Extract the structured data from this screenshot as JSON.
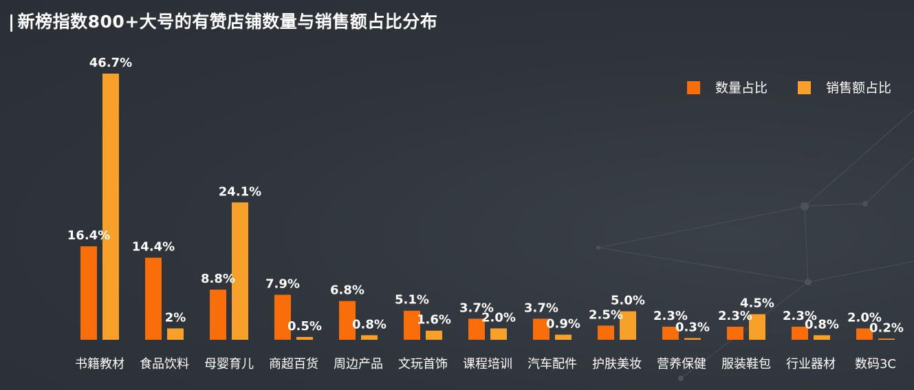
{
  "title": "新榜指数800+大号的有赞店铺数量与销售额占比分布",
  "colors": {
    "series1": "#f96d0a",
    "series2": "#f8a12a",
    "text": "#ffffff",
    "background": "#30353c"
  },
  "chart_data": {
    "type": "bar",
    "title": "新榜指数800+大号的有赞店铺数量与销售额占比分布",
    "xlabel": "",
    "ylabel": "",
    "ylim": [
      0,
      50
    ],
    "grid": false,
    "legend_position": "top-right",
    "categories": [
      "书籍教材",
      "食品饮料",
      "母婴育儿",
      "商超百货",
      "周边产品",
      "文玩首饰",
      "课程培训",
      "汽车配件",
      "护肤美妆",
      "营养保健",
      "服装鞋包",
      "行业器材",
      "数码3C"
    ],
    "series": [
      {
        "name": "数量占比",
        "values": [
          16.4,
          14.4,
          8.8,
          7.9,
          6.8,
          5.1,
          3.7,
          3.7,
          2.5,
          2.3,
          2.3,
          2.3,
          2.0
        ],
        "labels": [
          "16.4%",
          "14.4%",
          "8.8%",
          "7.9%",
          "6.8%",
          "5.1%",
          "3.7%",
          "3.7%",
          "2.5%",
          "2.3%",
          "2.3%",
          "2.3%",
          "2.0%"
        ]
      },
      {
        "name": "销售额占比",
        "values": [
          46.7,
          2,
          24.1,
          0.5,
          0.8,
          1.6,
          2.0,
          0.9,
          5.0,
          0.3,
          4.5,
          0.8,
          0.2
        ],
        "labels": [
          "46.7%",
          "2%",
          "24.1%",
          "0.5%",
          "0.8%",
          "1.6%",
          "2.0%",
          "0.9%",
          "5.0%",
          "0.3%",
          "4.5%",
          "0.8%",
          "0.2%"
        ]
      }
    ]
  }
}
